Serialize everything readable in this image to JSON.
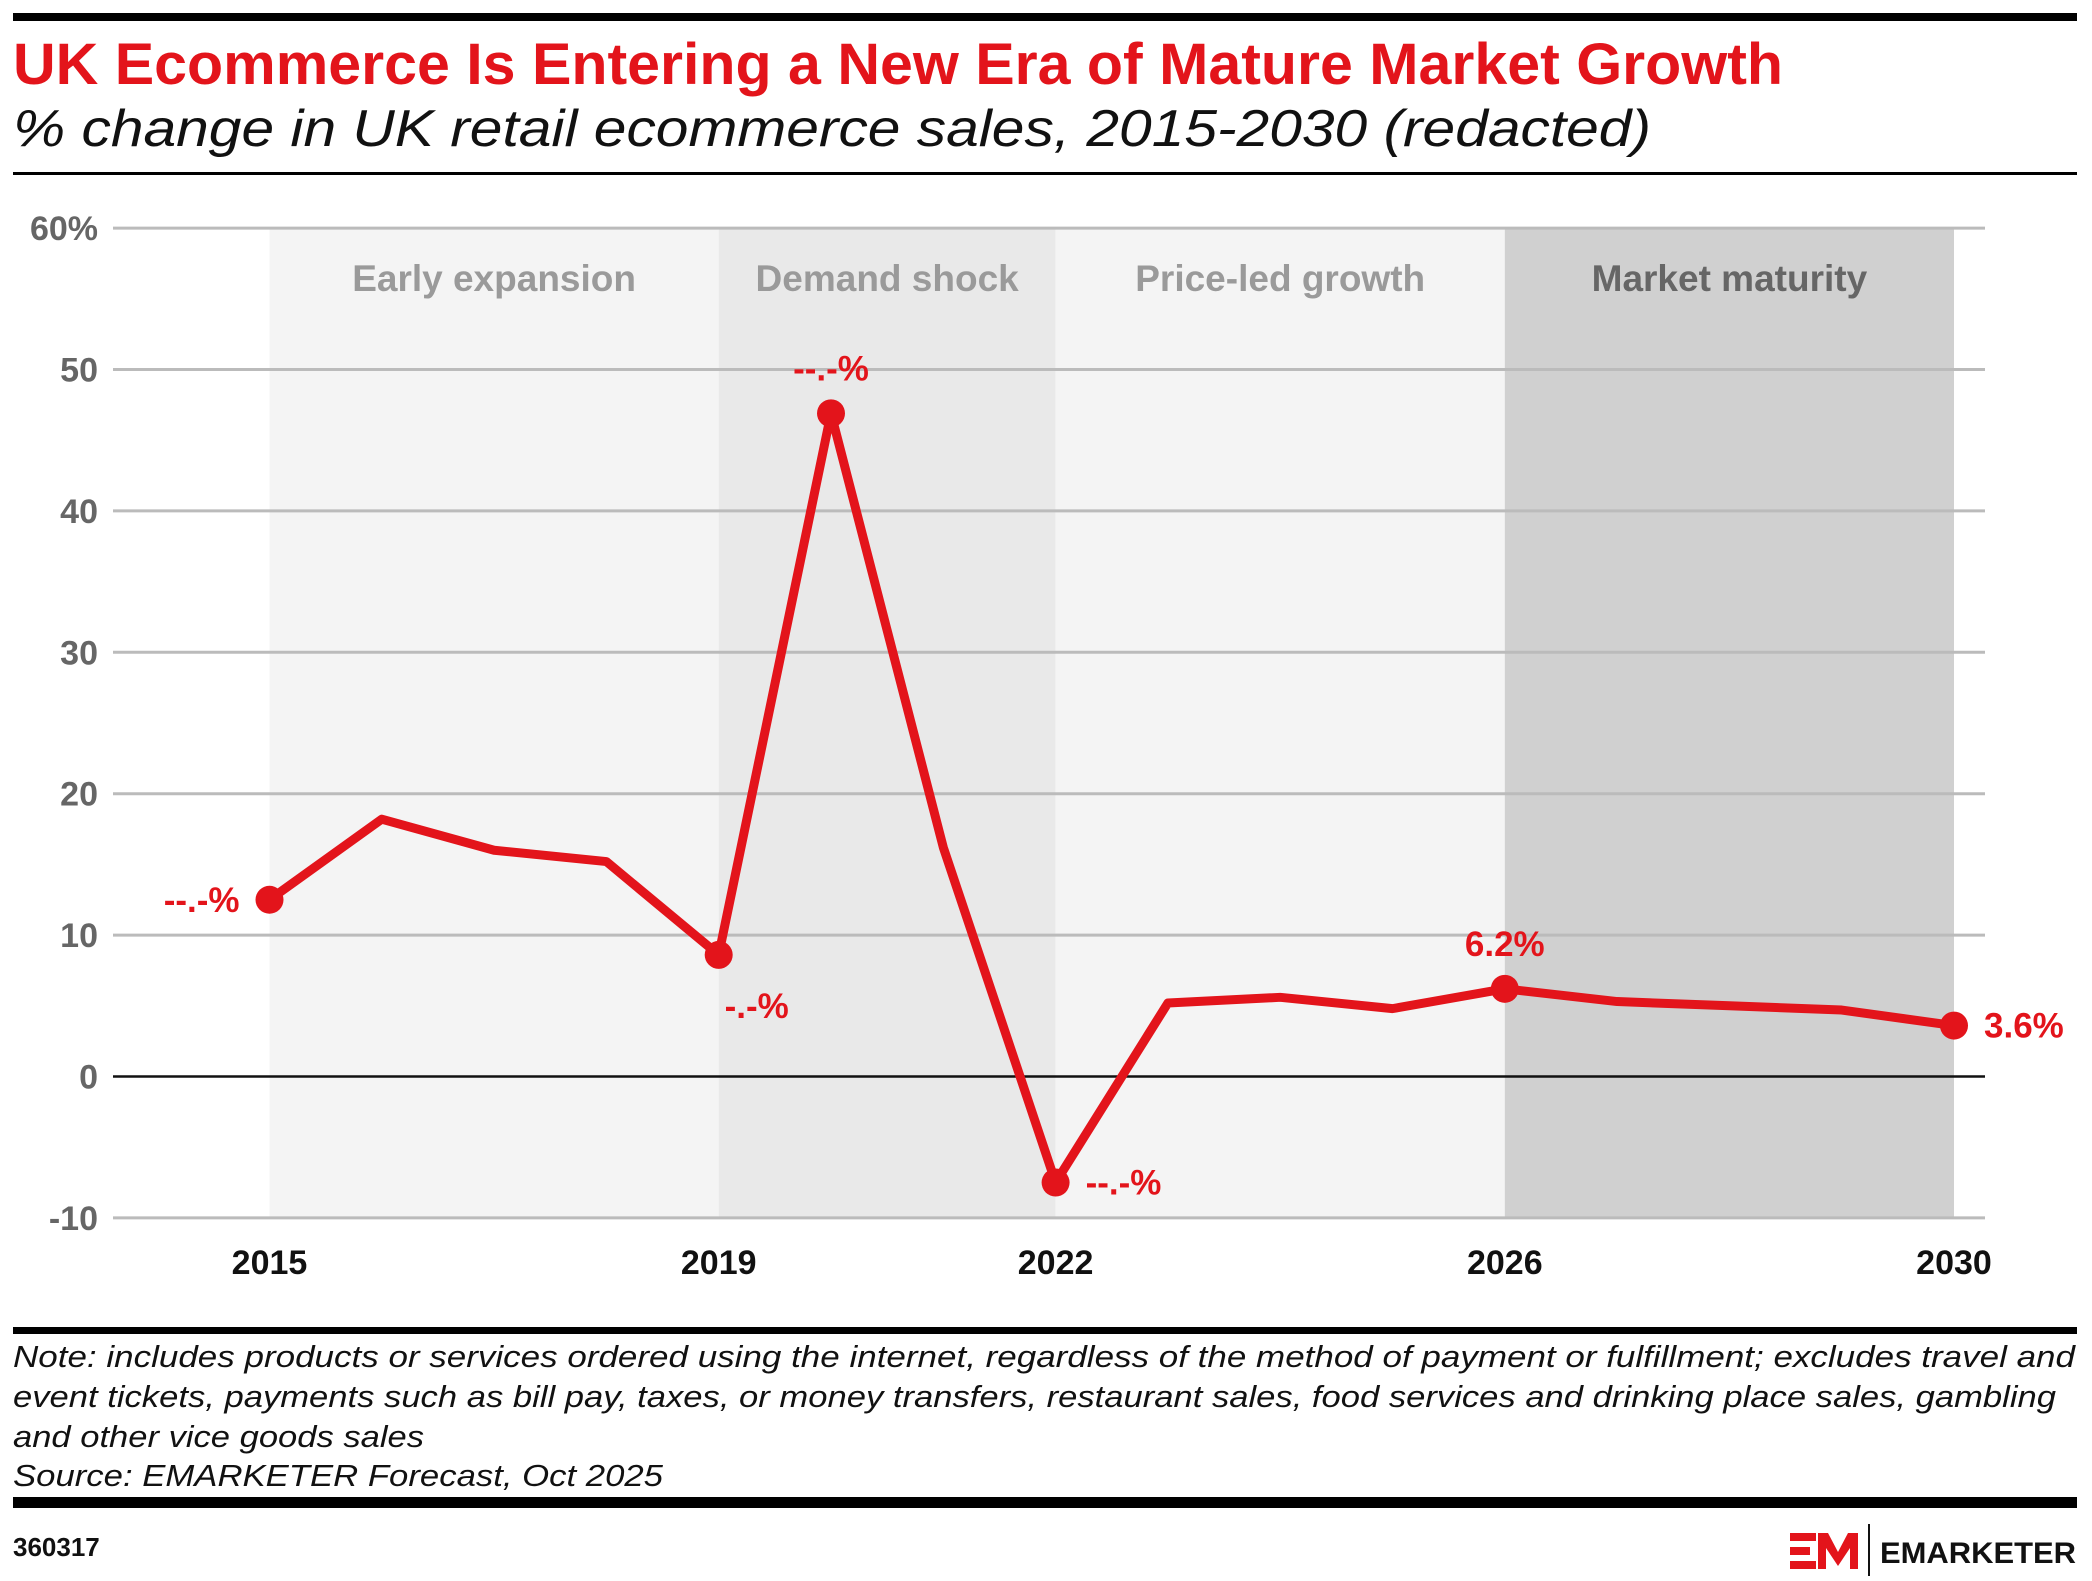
{
  "header": {
    "title": "UK Ecommerce Is Entering a New Era of Mature Market Growth",
    "subtitle": "% change in UK retail ecommerce sales, 2015-2030 (redacted)"
  },
  "chart_data": {
    "type": "line",
    "title": "UK Ecommerce Is Entering a New Era of Mature Market Growth",
    "subtitle": "% change in UK retail ecommerce sales, 2015-2030 (redacted)",
    "xlabel": "",
    "ylabel": "",
    "ylim": [
      -10,
      60
    ],
    "xlim": [
      2015,
      2030
    ],
    "grid": true,
    "y_ticks": [
      "60%",
      "50",
      "40",
      "30",
      "20",
      "10",
      "0",
      "-10"
    ],
    "y_tick_values": [
      60,
      50,
      40,
      30,
      20,
      10,
      0,
      -10
    ],
    "x_ticks": [
      "2015",
      "2019",
      "2022",
      "2026",
      "2030"
    ],
    "x": [
      2015,
      2016,
      2017,
      2018,
      2019,
      2020,
      2021,
      2022,
      2023,
      2024,
      2025,
      2026,
      2027,
      2028,
      2029,
      2030
    ],
    "series": [
      {
        "values": [
          12.5,
          18.2,
          16.0,
          15.2,
          8.6,
          46.9,
          16.2,
          -7.5,
          5.2,
          5.6,
          4.8,
          6.2,
          5.3,
          5.0,
          4.7,
          3.6
        ],
        "color": "#e3141b"
      }
    ],
    "bands": [
      {
        "label": "Early expansion",
        "from": 2015,
        "to": 2019,
        "color": "#f4f4f4",
        "text_color": "#9a9a9a"
      },
      {
        "label": "Demand shock",
        "from": 2019,
        "to": 2022,
        "color": "#e9e9e9",
        "text_color": "#9a9a9a"
      },
      {
        "label": "Price-led growth",
        "from": 2022,
        "to": 2026,
        "color": "#f4f4f4",
        "text_color": "#9a9a9a"
      },
      {
        "label": "Market maturity",
        "from": 2026,
        "to": 2030,
        "color": "#d0d0d0",
        "text_color": "#666666"
      }
    ],
    "annotations": [
      {
        "x": 2015,
        "text": "--.-%",
        "position": "left"
      },
      {
        "x": 2019,
        "text": "-.-%",
        "position": "below"
      },
      {
        "x": 2020,
        "text": "--.-%",
        "position": "above"
      },
      {
        "x": 2022,
        "text": "--.-%",
        "position": "right"
      },
      {
        "x": 2026,
        "text": "6.2%",
        "position": "above"
      },
      {
        "x": 2030,
        "text": "3.6%",
        "position": "right"
      }
    ]
  },
  "footer": {
    "note_lines": [
      "Note: includes products or services ordered using the internet, regardless of the method of payment or fulfillment; excludes travel and",
      "event tickets, payments such as bill pay, taxes, or money transfers, restaurant sales, food services and drinking place sales, gambling",
      "and other vice goods sales"
    ],
    "source": "Source: EMARKETER Forecast, Oct 2025",
    "chart_id": "360317",
    "brand": "EMARKETER",
    "brand_color": "#e3141b"
  }
}
